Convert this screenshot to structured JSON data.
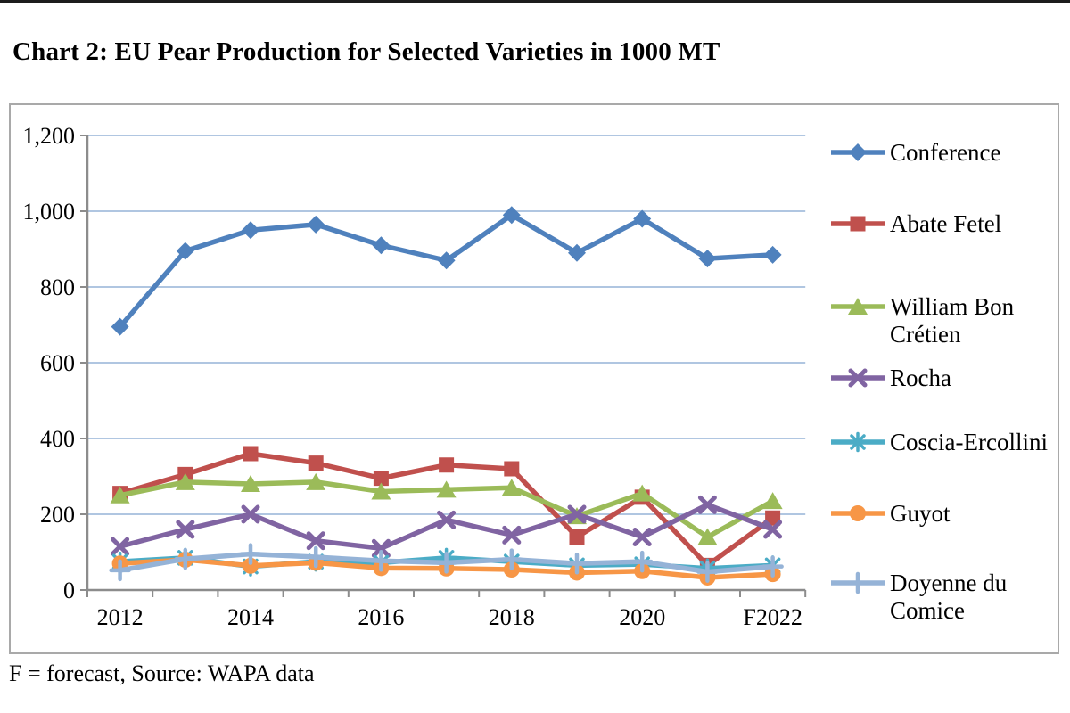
{
  "page": {
    "title": "Chart 2: EU Pear Production for Selected Varieties in 1000 MT",
    "footnote": "F = forecast, Source: WAPA data"
  },
  "chart_data": {
    "type": "line",
    "title": "Chart 2: EU Pear Production for Selected Varieties in 1000 MT",
    "unit": "1000 MT",
    "categories": [
      "2012",
      "2013",
      "2014",
      "2015",
      "2016",
      "2017",
      "2018",
      "2019",
      "2020",
      "2021",
      "F2022"
    ],
    "series": [
      {
        "name": "Conference",
        "marker": "diamond",
        "color": "#4F81BD",
        "values": [
          695,
          895,
          950,
          965,
          910,
          870,
          990,
          890,
          980,
          875,
          885
        ]
      },
      {
        "name": "Abate Fetel",
        "marker": "square",
        "color": "#C0504D",
        "values": [
          255,
          305,
          360,
          335,
          295,
          330,
          320,
          140,
          245,
          65,
          190
        ]
      },
      {
        "name": "William Bon Crétien",
        "marker": "triangle",
        "color": "#9BBB59",
        "values": [
          250,
          285,
          280,
          285,
          260,
          265,
          270,
          195,
          255,
          140,
          235
        ]
      },
      {
        "name": "Rocha",
        "marker": "x",
        "color": "#8064A2",
        "values": [
          115,
          160,
          200,
          130,
          110,
          185,
          145,
          200,
          140,
          225,
          160
        ]
      },
      {
        "name": "Coscia-Ercollini",
        "marker": "asterisk",
        "color": "#4BACC6",
        "values": [
          75,
          85,
          62,
          75,
          72,
          85,
          75,
          65,
          68,
          57,
          65
        ]
      },
      {
        "name": "Guyot",
        "marker": "circle",
        "color": "#F79646",
        "values": [
          70,
          80,
          64,
          72,
          58,
          57,
          54,
          46,
          50,
          33,
          42
        ]
      },
      {
        "name": "Doyenne du Comice",
        "marker": "plus",
        "color": "#95B3D7",
        "values": [
          52,
          82,
          95,
          87,
          77,
          72,
          81,
          70,
          75,
          48,
          62
        ]
      }
    ],
    "ylim": [
      0,
      1200
    ],
    "ytick_interval": 200,
    "ytick_labels": [
      "0",
      "200",
      "400",
      "600",
      "800",
      "1,000",
      "1,200"
    ],
    "xtick_labels_shown": [
      "2012",
      "2014",
      "2016",
      "2018",
      "2020",
      "F2022"
    ],
    "grid": "horizontal-only",
    "legend_position": "right",
    "footnote": "F = forecast, Source: WAPA data",
    "style": {
      "grid_color": "#95B3D7",
      "axis_color": "#8C8C8C",
      "frame_border_color": "#A9A9A9",
      "text_color": "#000000"
    }
  }
}
